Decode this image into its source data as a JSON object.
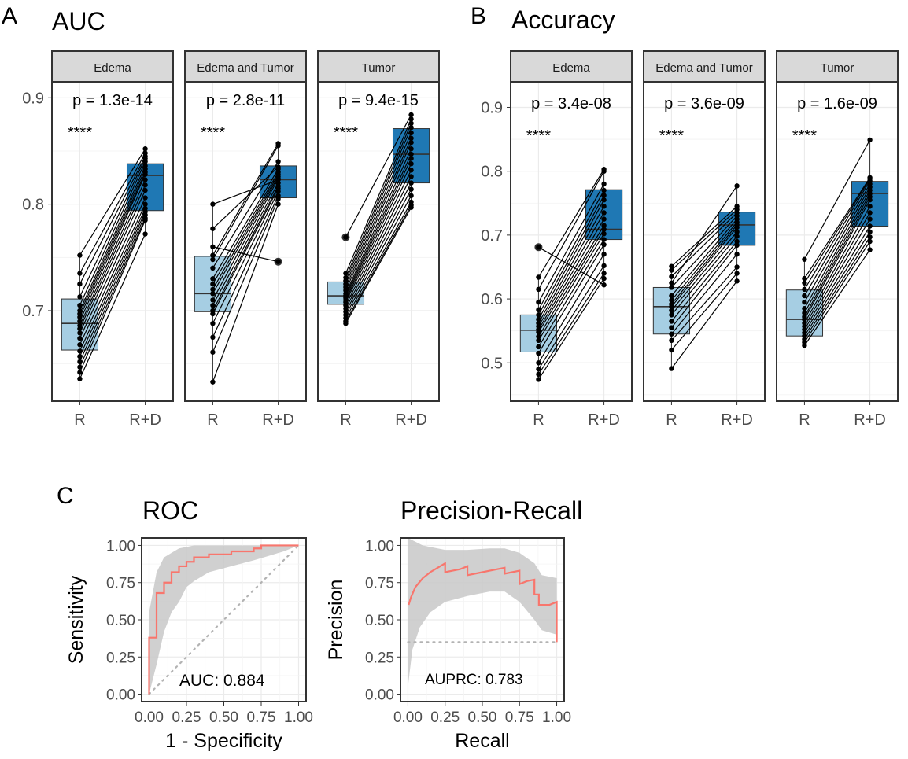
{
  "panels": {
    "A": {
      "letter": "A",
      "title": "AUC",
      "yticks": [
        "0.7",
        "0.8",
        "0.9"
      ],
      "ytick_values": [
        0.7,
        0.8,
        0.9
      ]
    },
    "B": {
      "letter": "B",
      "title": "Accuracy",
      "yticks": [
        "0.5",
        "0.6",
        "0.7",
        "0.8",
        "0.9"
      ],
      "ytick_values": [
        0.5,
        0.6,
        0.7,
        0.8,
        0.9
      ]
    },
    "C": {
      "letter": "C",
      "roc_title": "ROC",
      "pr_title": "Precision-Recall"
    }
  },
  "chart_data": [
    {
      "type": "box",
      "panel": "A",
      "title": "AUC",
      "ylim": [
        0.615,
        0.915
      ],
      "categories": [
        "R",
        "R+D"
      ],
      "facets": [
        {
          "label": "Edema",
          "p_text": "p = 1.3e-14",
          "stars": "****",
          "boxes": [
            {
              "category": "R",
              "q1": 0.663,
              "median": 0.688,
              "q3": 0.711,
              "whisker_low": 0.636,
              "whisker_high": 0.752,
              "outliers": []
            },
            {
              "category": "R+D",
              "q1": 0.794,
              "median": 0.827,
              "q3": 0.838,
              "whisker_low": 0.772,
              "whisker_high": 0.852,
              "outliers": []
            }
          ],
          "pairs": [
            [
              0.752,
              0.852
            ],
            [
              0.735,
              0.848
            ],
            [
              0.725,
              0.845
            ],
            [
              0.713,
              0.843
            ],
            [
              0.705,
              0.84
            ],
            [
              0.7,
              0.836
            ],
            [
              0.697,
              0.833
            ],
            [
              0.694,
              0.83
            ],
            [
              0.69,
              0.828
            ],
            [
              0.686,
              0.823
            ],
            [
              0.683,
              0.818
            ],
            [
              0.679,
              0.813
            ],
            [
              0.674,
              0.806
            ],
            [
              0.668,
              0.8
            ],
            [
              0.662,
              0.796
            ],
            [
              0.657,
              0.793
            ],
            [
              0.652,
              0.79
            ],
            [
              0.647,
              0.787
            ],
            [
              0.642,
              0.785
            ],
            [
              0.636,
              0.772
            ]
          ]
        },
        {
          "label": "Edema and Tumor",
          "p_text": "p = 2.8e-11",
          "stars": "****",
          "boxes": [
            {
              "category": "R",
              "q1": 0.699,
              "median": 0.716,
              "q3": 0.751,
              "whisker_low": 0.633,
              "whisker_high": 0.8,
              "outliers": []
            },
            {
              "category": "R+D",
              "q1": 0.806,
              "median": 0.823,
              "q3": 0.836,
              "whisker_low": 0.8,
              "whisker_high": 0.857,
              "outliers": [
                0.746
              ]
            }
          ],
          "pairs": [
            [
              0.8,
              0.823
            ],
            [
              0.777,
              0.835
            ],
            [
              0.76,
              0.746
            ],
            [
              0.752,
              0.857
            ],
            [
              0.748,
              0.855
            ],
            [
              0.74,
              0.84
            ],
            [
              0.73,
              0.833
            ],
            [
              0.725,
              0.83
            ],
            [
              0.72,
              0.828
            ],
            [
              0.716,
              0.826
            ],
            [
              0.71,
              0.824
            ],
            [
              0.705,
              0.82
            ],
            [
              0.7,
              0.817
            ],
            [
              0.697,
              0.815
            ],
            [
              0.688,
              0.812
            ],
            [
              0.675,
              0.808
            ],
            [
              0.661,
              0.805
            ],
            [
              0.633,
              0.8
            ]
          ]
        },
        {
          "label": "Tumor",
          "p_text": "p = 9.4e-15",
          "stars": "****",
          "boxes": [
            {
              "category": "R",
              "q1": 0.706,
              "median": 0.714,
              "q3": 0.727,
              "whisker_low": 0.688,
              "whisker_high": 0.735,
              "outliers": [
                0.769
              ]
            },
            {
              "category": "R+D",
              "q1": 0.82,
              "median": 0.847,
              "q3": 0.871,
              "whisker_low": 0.797,
              "whisker_high": 0.884,
              "outliers": []
            }
          ],
          "pairs": [
            [
              0.769,
              0.884
            ],
            [
              0.735,
              0.88
            ],
            [
              0.731,
              0.876
            ],
            [
              0.728,
              0.872
            ],
            [
              0.725,
              0.867
            ],
            [
              0.722,
              0.862
            ],
            [
              0.719,
              0.858
            ],
            [
              0.716,
              0.852
            ],
            [
              0.714,
              0.847
            ],
            [
              0.712,
              0.843
            ],
            [
              0.71,
              0.838
            ],
            [
              0.708,
              0.832
            ],
            [
              0.705,
              0.826
            ],
            [
              0.702,
              0.82
            ],
            [
              0.699,
              0.814
            ],
            [
              0.696,
              0.808
            ],
            [
              0.693,
              0.802
            ],
            [
              0.69,
              0.799
            ],
            [
              0.688,
              0.797
            ]
          ]
        }
      ]
    },
    {
      "type": "box",
      "panel": "B",
      "title": "Accuracy",
      "ylim": [
        0.44,
        0.94
      ],
      "categories": [
        "R",
        "R+D"
      ],
      "facets": [
        {
          "label": "Edema",
          "p_text": "p = 3.4e-08",
          "stars": "****",
          "boxes": [
            {
              "category": "R",
              "q1": 0.517,
              "median": 0.551,
              "q3": 0.575,
              "whisker_low": 0.474,
              "whisker_high": 0.634,
              "outliers": [
                0.681
              ]
            },
            {
              "category": "R+D",
              "q1": 0.693,
              "median": 0.709,
              "q3": 0.771,
              "whisker_low": 0.622,
              "whisker_high": 0.803,
              "outliers": []
            }
          ],
          "pairs": [
            [
              0.681,
              0.622
            ],
            [
              0.634,
              0.803
            ],
            [
              0.615,
              0.8
            ],
            [
              0.595,
              0.78
            ],
            [
              0.583,
              0.77
            ],
            [
              0.575,
              0.762
            ],
            [
              0.568,
              0.755
            ],
            [
              0.562,
              0.745
            ],
            [
              0.557,
              0.735
            ],
            [
              0.552,
              0.725
            ],
            [
              0.548,
              0.715
            ],
            [
              0.541,
              0.709
            ],
            [
              0.535,
              0.702
            ],
            [
              0.525,
              0.693
            ],
            [
              0.515,
              0.685
            ],
            [
              0.5,
              0.67
            ],
            [
              0.49,
              0.652
            ],
            [
              0.482,
              0.64
            ],
            [
              0.474,
              0.632
            ]
          ]
        },
        {
          "label": "Edema and Tumor",
          "p_text": "p = 3.6e-09",
          "stars": "****",
          "boxes": [
            {
              "category": "R",
              "q1": 0.545,
              "median": 0.588,
              "q3": 0.618,
              "whisker_low": 0.491,
              "whisker_high": 0.651,
              "outliers": []
            },
            {
              "category": "R+D",
              "q1": 0.684,
              "median": 0.716,
              "q3": 0.736,
              "whisker_low": 0.628,
              "whisker_high": 0.777,
              "outliers": []
            }
          ],
          "pairs": [
            [
              0.651,
              0.745
            ],
            [
              0.645,
              0.74
            ],
            [
              0.635,
              0.735
            ],
            [
              0.625,
              0.777
            ],
            [
              0.618,
              0.73
            ],
            [
              0.605,
              0.725
            ],
            [
              0.598,
              0.72
            ],
            [
              0.592,
              0.716
            ],
            [
              0.588,
              0.712
            ],
            [
              0.582,
              0.705
            ],
            [
              0.575,
              0.698
            ],
            [
              0.565,
              0.69
            ],
            [
              0.555,
              0.684
            ],
            [
              0.545,
              0.67
            ],
            [
              0.535,
              0.65
            ],
            [
              0.52,
              0.64
            ],
            [
              0.491,
              0.628
            ]
          ]
        },
        {
          "label": "Tumor",
          "p_text": "p = 1.6e-09",
          "stars": "****",
          "boxes": [
            {
              "category": "R",
              "q1": 0.542,
              "median": 0.568,
              "q3": 0.614,
              "whisker_low": 0.527,
              "whisker_high": 0.662,
              "outliers": []
            },
            {
              "category": "R+D",
              "q1": 0.714,
              "median": 0.765,
              "q3": 0.784,
              "whisker_low": 0.677,
              "whisker_high": 0.849,
              "outliers": []
            }
          ],
          "pairs": [
            [
              0.662,
              0.849
            ],
            [
              0.632,
              0.79
            ],
            [
              0.625,
              0.788
            ],
            [
              0.615,
              0.785
            ],
            [
              0.605,
              0.78
            ],
            [
              0.595,
              0.775
            ],
            [
              0.585,
              0.77
            ],
            [
              0.578,
              0.765
            ],
            [
              0.572,
              0.76
            ],
            [
              0.568,
              0.755
            ],
            [
              0.562,
              0.745
            ],
            [
              0.557,
              0.735
            ],
            [
              0.552,
              0.725
            ],
            [
              0.547,
              0.714
            ],
            [
              0.542,
              0.705
            ],
            [
              0.537,
              0.697
            ],
            [
              0.532,
              0.69
            ],
            [
              0.527,
              0.677
            ]
          ]
        }
      ]
    },
    {
      "type": "line",
      "panel": "C",
      "title": "ROC",
      "xlabel": "1 - Specificity",
      "ylabel": "Sensitivity",
      "xlim": [
        0,
        1
      ],
      "ylim": [
        0,
        1
      ],
      "xticks": [
        "0.00",
        "0.25",
        "0.50",
        "0.75",
        "1.00"
      ],
      "yticks": [
        "0.00",
        "0.25",
        "0.50",
        "0.75",
        "1.00"
      ],
      "annotation": "AUC: 0.884",
      "curve": [
        [
          0,
          0
        ],
        [
          0,
          0.38
        ],
        [
          0.05,
          0.38
        ],
        [
          0.05,
          0.68
        ],
        [
          0.1,
          0.68
        ],
        [
          0.1,
          0.75
        ],
        [
          0.15,
          0.75
        ],
        [
          0.15,
          0.82
        ],
        [
          0.2,
          0.82
        ],
        [
          0.2,
          0.86
        ],
        [
          0.25,
          0.86
        ],
        [
          0.25,
          0.89
        ],
        [
          0.3,
          0.89
        ],
        [
          0.3,
          0.92
        ],
        [
          0.4,
          0.92
        ],
        [
          0.4,
          0.94
        ],
        [
          0.55,
          0.94
        ],
        [
          0.55,
          0.96
        ],
        [
          0.7,
          0.96
        ],
        [
          0.7,
          0.98
        ],
        [
          0.75,
          0.98
        ],
        [
          0.75,
          1.0
        ],
        [
          1.0,
          1.0
        ]
      ],
      "ci_upper": [
        [
          0,
          0.55
        ],
        [
          0.05,
          0.82
        ],
        [
          0.1,
          0.92
        ],
        [
          0.15,
          0.95
        ],
        [
          0.2,
          0.98
        ],
        [
          0.3,
          1.0
        ],
        [
          1.0,
          1.0
        ]
      ],
      "ci_lower": [
        [
          0,
          0
        ],
        [
          0.05,
          0.2
        ],
        [
          0.1,
          0.42
        ],
        [
          0.15,
          0.55
        ],
        [
          0.2,
          0.62
        ],
        [
          0.25,
          0.72
        ],
        [
          0.3,
          0.76
        ],
        [
          0.4,
          0.82
        ],
        [
          0.55,
          0.86
        ],
        [
          0.7,
          0.9
        ],
        [
          0.8,
          0.93
        ],
        [
          0.9,
          0.96
        ],
        [
          1.0,
          1.0
        ]
      ],
      "reference_line": [
        [
          0,
          0
        ],
        [
          1,
          1
        ]
      ]
    },
    {
      "type": "line",
      "panel": "C",
      "title": "Precision-Recall",
      "xlabel": "Recall",
      "ylabel": "Precision",
      "xlim": [
        0,
        1
      ],
      "ylim": [
        0,
        1
      ],
      "xticks": [
        "0.00",
        "0.25",
        "0.50",
        "0.75",
        "1.00"
      ],
      "yticks": [
        "0.00",
        "0.25",
        "0.50",
        "0.75",
        "1.00"
      ],
      "annotation": "AUPRC: 0.783",
      "curve": [
        [
          0.005,
          0.6
        ],
        [
          0.02,
          0.65
        ],
        [
          0.05,
          0.72
        ],
        [
          0.1,
          0.78
        ],
        [
          0.15,
          0.82
        ],
        [
          0.2,
          0.85
        ],
        [
          0.25,
          0.88
        ],
        [
          0.25,
          0.82
        ],
        [
          0.3,
          0.83
        ],
        [
          0.35,
          0.84
        ],
        [
          0.4,
          0.86
        ],
        [
          0.4,
          0.8
        ],
        [
          0.45,
          0.81
        ],
        [
          0.5,
          0.82
        ],
        [
          0.55,
          0.83
        ],
        [
          0.6,
          0.84
        ],
        [
          0.65,
          0.85
        ],
        [
          0.65,
          0.81
        ],
        [
          0.7,
          0.82
        ],
        [
          0.75,
          0.83
        ],
        [
          0.75,
          0.74
        ],
        [
          0.8,
          0.76
        ],
        [
          0.85,
          0.77
        ],
        [
          0.85,
          0.67
        ],
        [
          0.88,
          0.67
        ],
        [
          0.88,
          0.6
        ],
        [
          0.9,
          0.6
        ],
        [
          0.95,
          0.6
        ],
        [
          1.0,
          0.62
        ],
        [
          1.0,
          0.35
        ]
      ],
      "ci_upper": [
        [
          0,
          1.05
        ],
        [
          0.1,
          1.0
        ],
        [
          0.25,
          0.97
        ],
        [
          0.4,
          0.97
        ],
        [
          0.55,
          0.98
        ],
        [
          0.65,
          0.98
        ],
        [
          0.75,
          0.95
        ],
        [
          0.85,
          0.88
        ],
        [
          0.9,
          0.8
        ],
        [
          1.0,
          0.78
        ]
      ],
      "ci_lower": [
        [
          0,
          0.05
        ],
        [
          0.03,
          0.3
        ],
        [
          0.08,
          0.45
        ],
        [
          0.15,
          0.55
        ],
        [
          0.25,
          0.62
        ],
        [
          0.4,
          0.66
        ],
        [
          0.55,
          0.69
        ],
        [
          0.65,
          0.69
        ],
        [
          0.75,
          0.62
        ],
        [
          0.85,
          0.5
        ],
        [
          0.9,
          0.43
        ],
        [
          1.0,
          0.4
        ]
      ],
      "baseline": 0.35
    }
  ]
}
